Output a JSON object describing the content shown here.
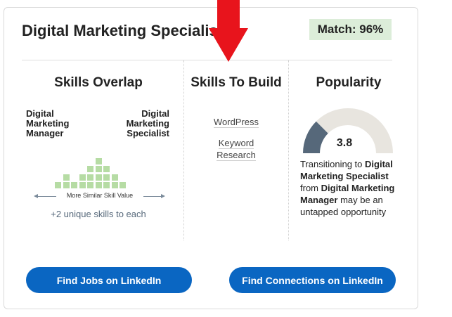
{
  "card": {
    "title": "Digital Marketing Specialist",
    "match_badge": "Match: 96%"
  },
  "skills_overlap": {
    "title": "Skills Overlap",
    "from_role": "Digital Marketing Manager",
    "to_role": "Digital Marketing Specialist",
    "axis_label": "More Similar Skill Value",
    "unique_text": "+2 unique skills to each",
    "histogram_column_heights": [
      1,
      2,
      1,
      2,
      3,
      4,
      3,
      2,
      1
    ]
  },
  "skills_to_build": {
    "title": "Skills To Build",
    "skills": [
      "WordPress",
      "Keyword Research"
    ]
  },
  "popularity": {
    "title": "Popularity",
    "score": "3.8",
    "gauge_fraction": 0.25,
    "description_parts": [
      "Transitioning to ",
      "Digital Marketing Specialist",
      " from ",
      "Digital Marketing Manager",
      " may be an untapped opportunity"
    ]
  },
  "buttons": {
    "find_jobs": "Find Jobs on LinkedIn",
    "find_connections": "Find Connections on LinkedIn"
  },
  "colors": {
    "accent": "#0a66c2",
    "match_bg": "#dcedd9",
    "histogram": "#b6dca4",
    "gauge_fill": "#56687a",
    "gauge_track": "#e8e5df",
    "annotation_arrow": "#e8141c"
  }
}
